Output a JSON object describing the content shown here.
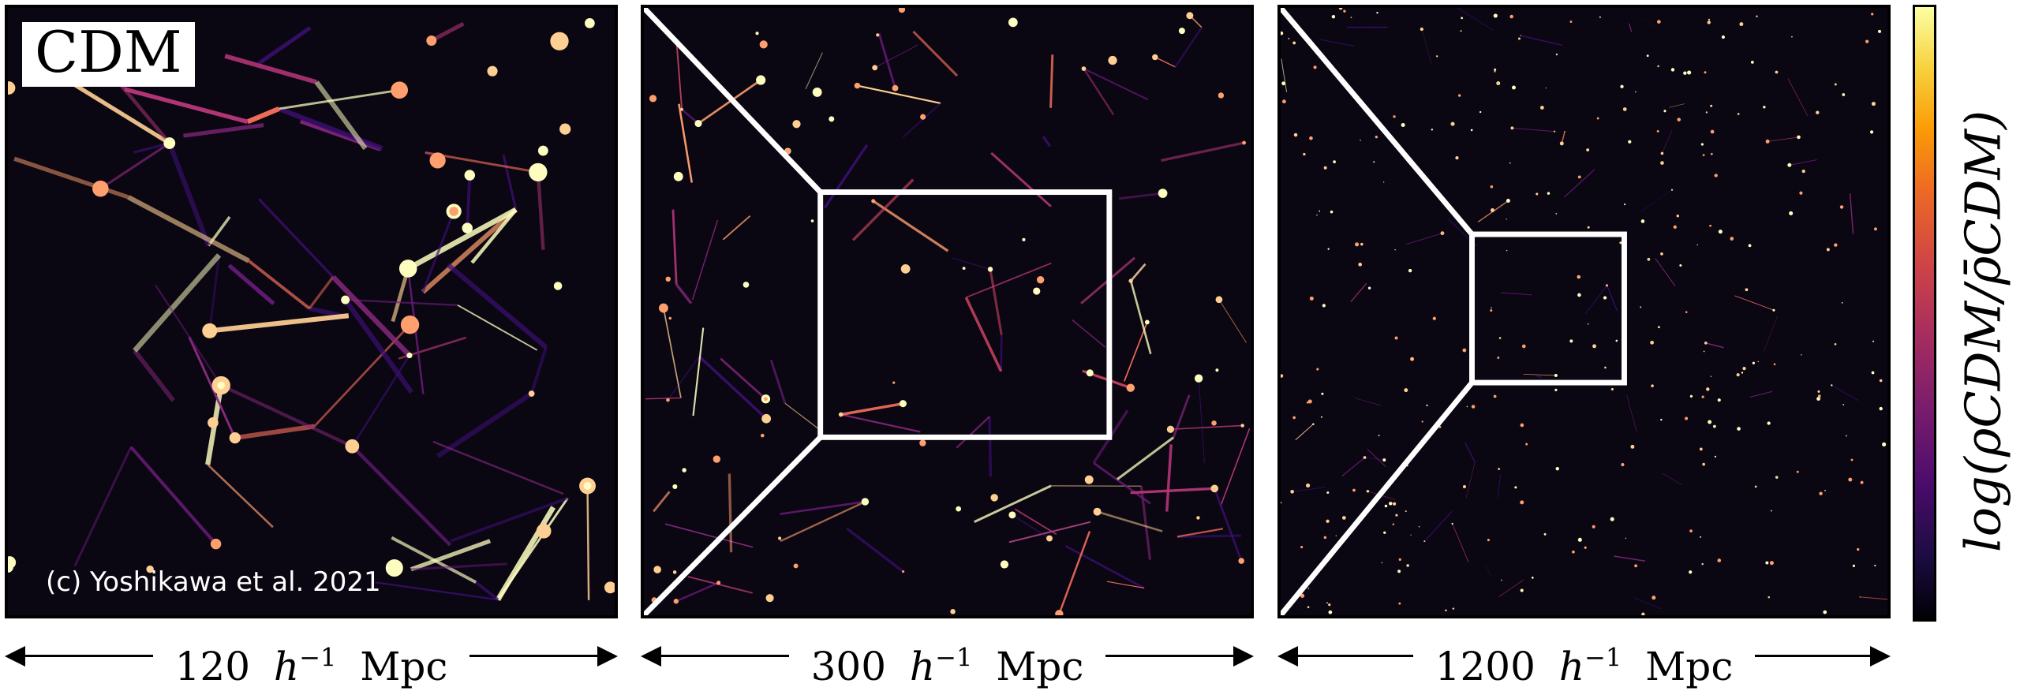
{
  "panels": [
    {
      "label": "CDM",
      "credit": "(c) Yoshikawa et al. 2021",
      "scale_value": "120",
      "scale_unit_h": "h",
      "scale_unit_exp": "−1",
      "scale_unit_mpc": "Mpc"
    },
    {
      "scale_value": "300",
      "scale_unit_h": "h",
      "scale_unit_exp": "−1",
      "scale_unit_mpc": "Mpc"
    },
    {
      "scale_value": "1200",
      "scale_unit_h": "h",
      "scale_unit_exp": "−1",
      "scale_unit_mpc": "Mpc"
    }
  ],
  "colorbar": {
    "label": "log(ρCDM/ρ̄CDM)",
    "colormap": "inferno",
    "colors": [
      "#000004",
      "#1b0c41",
      "#4a0c6b",
      "#781c6d",
      "#a52c60",
      "#cf4446",
      "#ed6925",
      "#fb9b06",
      "#f7d13d",
      "#fcffa4"
    ]
  }
}
